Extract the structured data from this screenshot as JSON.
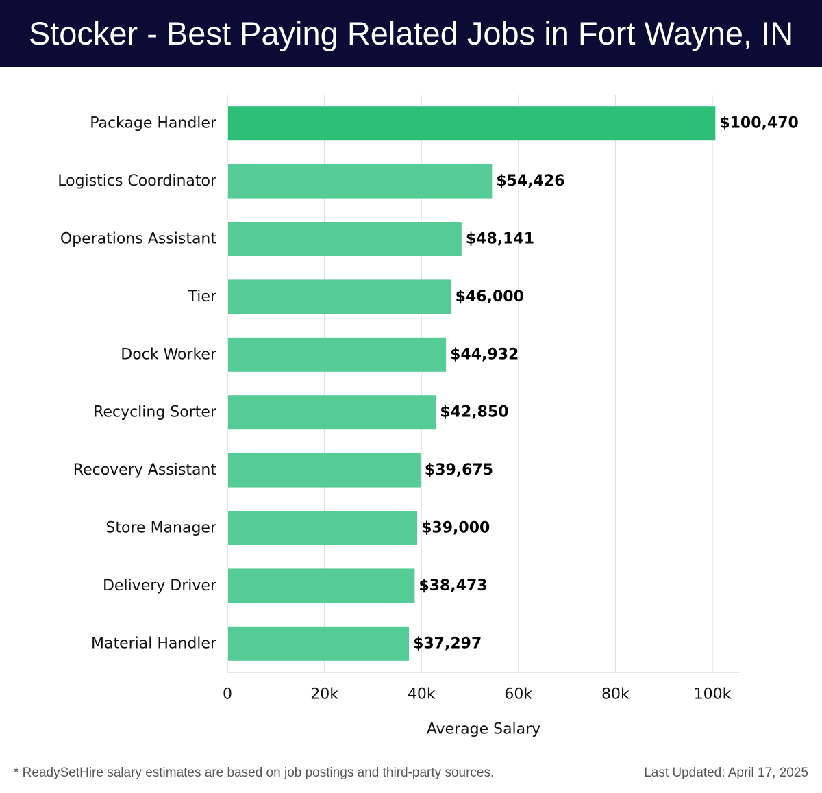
{
  "header": {
    "title": "Stocker - Best Paying Related Jobs in Fort Wayne, IN"
  },
  "chart_data": {
    "type": "bar",
    "orientation": "horizontal",
    "title": "Stocker - Best Paying Related Jobs in Fort Wayne, IN",
    "xlabel": "Average Salary",
    "ylabel": "",
    "xlim": [
      0,
      105000
    ],
    "x_ticks": [
      0,
      20000,
      40000,
      60000,
      80000,
      100000
    ],
    "x_tick_labels": [
      "0",
      "20k",
      "40k",
      "60k",
      "80k",
      "100k"
    ],
    "grid": "vertical",
    "categories": [
      "Package Handler",
      "Logistics Coordinator",
      "Operations Assistant",
      "Tier",
      "Dock Worker",
      "Recycling Sorter",
      "Recovery Assistant",
      "Store Manager",
      "Delivery Driver",
      "Material Handler"
    ],
    "values": [
      100470,
      54426,
      48141,
      46000,
      44932,
      42850,
      39675,
      39000,
      38473,
      37297
    ],
    "value_labels": [
      "$100,470",
      "$54,426",
      "$48,141",
      "$46,000",
      "$44,932",
      "$42,850",
      "$39,675",
      "$39,000",
      "$38,473",
      "$37,297"
    ],
    "colors": {
      "highlight_bar": "#2dbf78",
      "bar": "#55cc95",
      "grid": "#dddddd",
      "header_background": "#0b0c35"
    }
  },
  "footer": {
    "note": "* ReadySetHire salary estimates are based on job postings and third-party sources.",
    "updated": "Last Updated: April 17, 2025"
  }
}
